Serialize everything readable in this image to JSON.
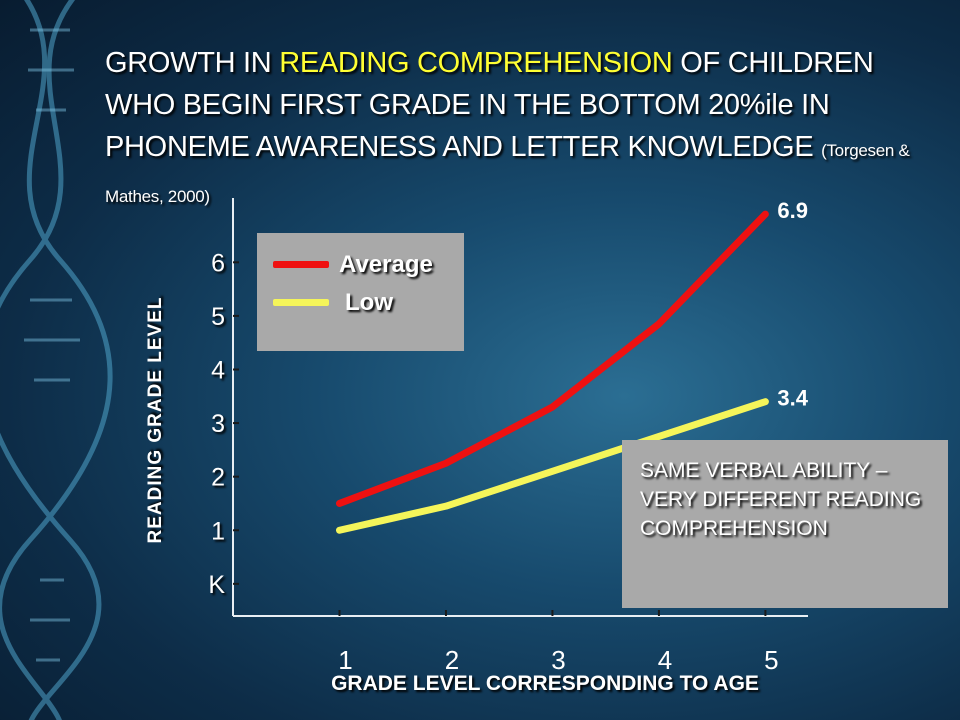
{
  "slide": {
    "title_part1": "GROWTH IN ",
    "title_highlight": "READING COMPREHENSION",
    "title_part2": " OF CHILDREN WHO BEGIN FIRST GRADE IN THE BOTTOM 20%ile IN PHONEME AWARENESS AND LETTER KNOWLEDGE ",
    "title_citation": "(Torgesen & Mathes, 2000)",
    "note_text": "SAME VERBAL ABILITY – VERY DIFFERENT READING COMPREHENSION",
    "colors": {
      "highlight": "#ffff33",
      "background": "#174a6d",
      "box": "#a9a9a9"
    }
  },
  "chart_data": {
    "type": "line",
    "x": [
      1,
      2,
      3,
      4,
      5
    ],
    "x_tick_labels": [
      "1",
      "2",
      "3",
      "4",
      "5"
    ],
    "y_tick_labels": [
      "K",
      "1",
      "2",
      "3",
      "4",
      "5",
      "6"
    ],
    "y_tick_values": [
      0,
      1,
      2,
      3,
      4,
      5,
      6
    ],
    "xlabel": "GRADE LEVEL CORRESPONDING TO AGE",
    "ylabel": "READING GRADE LEVEL",
    "xlim": [
      0,
      5.4
    ],
    "ylim": [
      -0.6,
      7.2
    ],
    "grid": false,
    "legend_position": "top-left",
    "series": [
      {
        "name": "Average",
        "color": "#ee1111",
        "values": [
          1.5,
          2.25,
          3.3,
          4.85,
          6.9
        ],
        "end_label": "6.9"
      },
      {
        "name": "Low",
        "color": "#f5f55a",
        "values": [
          1.0,
          1.45,
          2.1,
          2.75,
          3.4
        ],
        "end_label": "3.4"
      }
    ]
  }
}
